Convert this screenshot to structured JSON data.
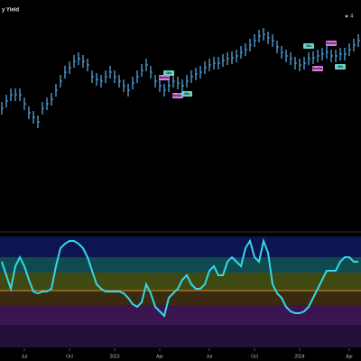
{
  "chart_data": [
    {
      "type": "price-bars",
      "title": "y Yield",
      "legend_text": "4",
      "color": "#5ab4f0",
      "xlim": [
        0,
        80
      ],
      "ylim": [
        0,
        250
      ],
      "values": [
        130,
        138,
        145,
        145,
        145,
        135,
        125,
        120,
        115,
        130,
        135,
        140,
        150,
        160,
        170,
        175,
        182,
        185,
        182,
        178,
        165,
        162,
        160,
        165,
        170,
        165,
        160,
        155,
        150,
        158,
        165,
        172,
        178,
        170,
        160,
        155,
        150,
        155,
        160,
        158,
        155,
        160,
        165,
        168,
        170,
        175,
        178,
        180,
        180,
        183,
        185,
        186,
        188,
        192,
        195,
        200,
        205,
        210,
        212,
        208,
        205,
        198,
        192,
        188,
        185,
        180,
        178,
        180,
        185,
        186,
        188,
        190,
        192,
        188,
        188,
        190,
        190,
        195,
        200,
        205
      ],
      "annotations": [
        {
          "x": 36,
          "label": "NoGo",
          "color": "#e27be8"
        },
        {
          "x": 39,
          "label": "NoGo",
          "color": "#e27be8"
        },
        {
          "x": 37,
          "label": "Go",
          "color": "#67d4c8"
        },
        {
          "x": 41,
          "label": "Go",
          "color": "#67d4c8"
        },
        {
          "x": 68,
          "label": "Go",
          "color": "#67d4c8"
        },
        {
          "x": 70,
          "label": "NoGo",
          "color": "#e27be8"
        },
        {
          "x": 73,
          "label": "NoGo",
          "color": "#e27be8"
        },
        {
          "x": 75,
          "label": "Go",
          "color": "#67d4c8"
        }
      ]
    },
    {
      "type": "oscillator",
      "color": "#35d7e6",
      "zero_color": "#e08a2c",
      "xlim": [
        0,
        80
      ],
      "ylim": [
        0,
        123
      ],
      "zero_line": 63,
      "values": [
        95,
        80,
        65,
        90,
        100,
        90,
        75,
        62,
        60,
        62,
        62,
        65,
        90,
        110,
        115,
        118,
        118,
        115,
        110,
        100,
        85,
        70,
        65,
        62,
        62,
        62,
        62,
        60,
        55,
        48,
        45,
        50,
        70,
        60,
        45,
        40,
        35,
        55,
        60,
        65,
        75,
        80,
        70,
        65,
        65,
        70,
        85,
        90,
        80,
        80,
        95,
        100,
        95,
        90,
        110,
        118,
        100,
        95,
        118,
        105,
        70,
        60,
        55,
        45,
        40,
        38,
        38,
        40,
        45,
        55,
        65,
        75,
        85,
        85,
        85,
        95,
        100,
        100,
        95,
        95
      ],
      "xticks": [
        {
          "value": 5,
          "label": "Jul"
        },
        {
          "value": 15,
          "label": "Oct"
        },
        {
          "value": 25,
          "label": "2023"
        },
        {
          "value": 35,
          "label": "Apr"
        },
        {
          "value": 46,
          "label": "Jul"
        },
        {
          "value": 56,
          "label": "Oct"
        },
        {
          "value": 66,
          "label": "2024"
        },
        {
          "value": 77,
          "label": "Apr"
        }
      ]
    }
  ]
}
